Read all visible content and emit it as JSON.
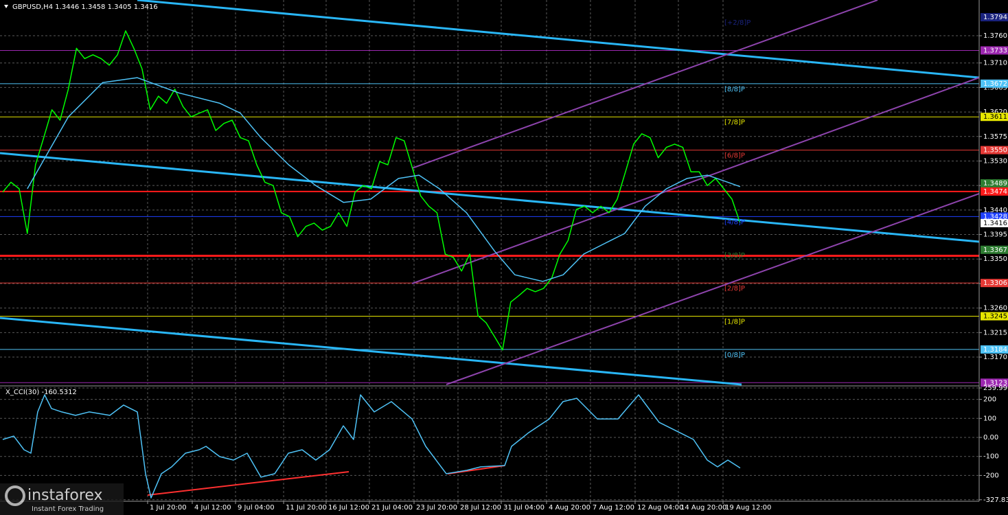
{
  "chart_data": [
    {
      "type": "line",
      "title": "GBPUSD,H4 1.3446 1.3458 1.3405 1.3416",
      "xlim": [
        -0.335,
        119.17
      ],
      "xticks": [
        {
          "value": 17.68,
          "label": "1 Jul 20:00"
        },
        {
          "value": 23.13,
          "label": "4 Jul 12:00"
        },
        {
          "value": 28.41,
          "label": "9 Jul 04:00"
        },
        {
          "value": 34.28,
          "label": "11 Jul 20:00"
        },
        {
          "value": 39.47,
          "label": "16 Jul 12:00"
        },
        {
          "value": 44.75,
          "label": "21 Jul 04:00"
        },
        {
          "value": 50.2,
          "label": "23 Jul 20:00"
        },
        {
          "value": 55.56,
          "label": "28 Jul 12:00"
        },
        {
          "value": 60.84,
          "label": "31 Jul 04:00"
        },
        {
          "value": 66.37,
          "label": "4 Aug 20:00"
        },
        {
          "value": 71.73,
          "label": "7 Aug 12:00"
        },
        {
          "value": 77.18,
          "label": "12 Aug 04:00"
        },
        {
          "value": 82.46,
          "label": "14 Aug 20:00"
        },
        {
          "value": 87.91,
          "label": "19 Aug 12:00"
        }
      ],
      "ylim": [
        1.31196,
        1.38256
      ],
      "yticks": [
        {
          "value": 1.376,
          "label": "1.3760"
        },
        {
          "value": 1.371,
          "label": "1.3710"
        },
        {
          "value": 1.3665,
          "label": "1.3665"
        },
        {
          "value": 1.362,
          "label": "1.3620"
        },
        {
          "value": 1.3575,
          "label": "1.3575"
        },
        {
          "value": 1.353,
          "label": "1.3530"
        },
        {
          "value": 1.3485,
          "label": "1.3485"
        },
        {
          "value": 1.344,
          "label": "1.3440"
        },
        {
          "value": 1.3395,
          "label": "1.3395"
        },
        {
          "value": 1.335,
          "label": "1.3350"
        },
        {
          "value": 1.3305,
          "label": "1.3305"
        },
        {
          "value": 1.326,
          "label": "1.3260"
        },
        {
          "value": 1.3215,
          "label": "1.3215"
        },
        {
          "value": 1.317,
          "label": "1.3170"
        }
      ],
      "grid": true,
      "series": [
        {
          "color": "#00ff00",
          "values": [
            1.3473,
            1.3491,
            1.3479,
            1.3397,
            1.3523,
            1.3573,
            1.3624,
            1.3605,
            1.3662,
            1.3737,
            1.3718,
            1.3725,
            1.3718,
            1.3706,
            1.3725,
            1.3769,
            1.3737,
            1.3699,
            1.3624,
            1.3649,
            1.3636,
            1.3662,
            1.363,
            1.3611,
            1.3618,
            1.3624,
            1.3586,
            1.3599,
            1.3605,
            1.3573,
            1.3567,
            1.3523,
            1.3491,
            1.3485,
            1.3435,
            1.3428,
            1.3391,
            1.341,
            1.3416,
            1.3403,
            1.341,
            1.3435,
            1.341,
            1.3473,
            1.3485,
            1.3479,
            1.3529,
            1.3523,
            1.3573,
            1.3567,
            1.3517,
            1.3466,
            1.3447,
            1.3435,
            1.3359,
            1.3353,
            1.3328,
            1.3359,
            1.3246,
            1.3233,
            1.3208,
            1.3183,
            1.3271,
            1.3283,
            1.3296,
            1.329,
            1.3296,
            1.3315,
            1.3359,
            1.3384,
            1.3441,
            1.3447,
            1.3435,
            1.3447,
            1.3435,
            1.346,
            1.351,
            1.3561,
            1.358,
            1.3573,
            1.3536,
            1.3555,
            1.3561,
            1.3555,
            1.351,
            1.351,
            1.3485,
            1.3498,
            1.3479,
            1.346,
            1.3416
          ]
        },
        {
          "color": "#4fc3f7",
          "x": [
            3.0,
            8.0,
            12.2,
            16.4,
            21.5,
            26.5,
            29.0,
            31.5,
            34.9,
            38.2,
            41.6,
            44.9,
            48.3,
            50.8,
            53.3,
            56.6,
            60.0,
            62.5,
            65.9,
            68.4,
            70.9,
            73.4,
            75.9,
            78.4,
            81.0,
            83.5,
            86.0,
            88.5,
            90.0
          ],
          "values": [
            1.3479,
            1.3611,
            1.3674,
            1.3683,
            1.3655,
            1.3636,
            1.3618,
            1.3573,
            1.3523,
            1.3485,
            1.3454,
            1.346,
            1.3498,
            1.3504,
            1.3479,
            1.3435,
            1.3365,
            1.3321,
            1.3309,
            1.3321,
            1.3359,
            1.3378,
            1.3397,
            1.3447,
            1.3479,
            1.3498,
            1.3504,
            1.3491,
            1.3483
          ]
        }
      ],
      "levels": [
        {
          "value": 1.3794,
          "tag": "1.3794",
          "color": "#1a237e",
          "label": "[+2/8]P",
          "line": false
        },
        {
          "value": 1.3733,
          "tag": "1.3733",
          "color": "#9c27b0",
          "line": true
        },
        {
          "value": 1.3672,
          "tag": "1.3672",
          "color": "#4fc3f7",
          "label": "[8/8]P",
          "line": true
        },
        {
          "value": 1.3611,
          "tag": "1.3611",
          "color": "#e6e600",
          "label": "[7/8]P",
          "line": true
        },
        {
          "value": 1.355,
          "tag": "1.3550",
          "color": "#e53935",
          "label": "[6/8]P",
          "line": true
        },
        {
          "value": 1.3489,
          "tag": "1.3489",
          "color": "#2e7d32",
          "line": false
        },
        {
          "value": 1.3474,
          "tag": "1.3474",
          "color": "#ff1a1a",
          "line": true,
          "width": 2
        },
        {
          "value": 1.3428,
          "tag": "1.3428",
          "color": "#1e40ff",
          "label": "[4/8]P",
          "line": true
        },
        {
          "value": 1.3416,
          "tag": "1.3416",
          "color": "#ffffff",
          "line": false
        },
        {
          "value": 1.3367,
          "tag": "1.3367",
          "color": "#2e7d32",
          "label": "[3/8]P",
          "line": false
        },
        {
          "value": 1.3356,
          "color": "#ff1a1a",
          "line": true,
          "width": 3
        },
        {
          "value": 1.3306,
          "tag": "1.3306",
          "color": "#e53935",
          "label": "[2/8]P",
          "line": true
        },
        {
          "value": 1.3245,
          "tag": "1.3245",
          "color": "#e6e600",
          "label": "[1/8]P",
          "line": true
        },
        {
          "value": 1.3184,
          "tag": "1.3184",
          "color": "#4fc3f7",
          "label": "[0/8]P",
          "line": true
        },
        {
          "value": 1.3123,
          "tag": "1.3123",
          "color": "#9c27b0",
          "line": true
        }
      ]
    },
    {
      "type": "line",
      "title": "X_CCI(30) -160.5312",
      "xlim": [
        -0.335,
        119.17
      ],
      "ylim": [
        -390,
        260
      ],
      "yticks": [
        259.9969,
        200,
        100,
        {
          "value": 0,
          "label": "0.00"
        },
        -100,
        -200,
        -327.832
      ],
      "grid": true,
      "series": [
        {
          "color": "#4fc3f7",
          "x": [
            0,
            1.34,
            2.6,
            3.44,
            4.27,
            5.11,
            5.95,
            7.21,
            8.88,
            10.56,
            13.07,
            14.75,
            16.43,
            17.43,
            18.1,
            19.36,
            20.62,
            22.29,
            23.97,
            24.81,
            26.48,
            28.16,
            29.83,
            31.51,
            33.19,
            34.86,
            36.54,
            38.21,
            39.89,
            41.57,
            42.82,
            43.66,
            45.34,
            47.43,
            49.95,
            51.62,
            54.14,
            56.65,
            58.33,
            61.26,
            62.1,
            64.19,
            66.7,
            68.38,
            70.06,
            72.57,
            75.09,
            77.6,
            80.11,
            82.63,
            84.3,
            85.98,
            87.24,
            88.5,
            90.0
          ],
          "values": [
            -11,
            7,
            -65,
            -83,
            134,
            224,
            152,
            134,
            116,
            134,
            116,
            170,
            134,
            -191,
            -318,
            -191,
            -155,
            -83,
            -65,
            -47,
            -101,
            -119,
            -83,
            -209,
            -191,
            -83,
            -65,
            -119,
            -65,
            61,
            -11,
            224,
            134,
            188,
            97,
            -47,
            -191,
            -173,
            -155,
            -148,
            -47,
            25,
            97,
            188,
            206,
            97,
            97,
            224,
            79,
            25,
            -11,
            -119,
            -155,
            -119,
            -160.5312
          ]
        }
      ]
    }
  ],
  "watermark": {
    "brand": "instaforex",
    "tagline": "Instant Forex Trading"
  }
}
